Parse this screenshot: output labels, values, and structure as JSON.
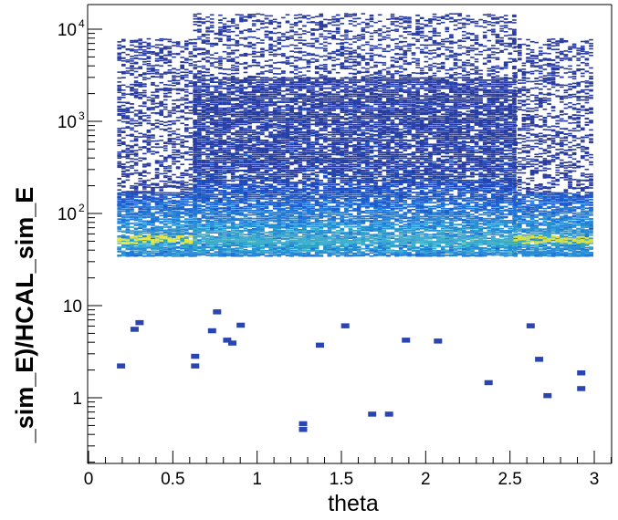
{
  "chart_data": {
    "type": "heatmap",
    "title": "",
    "xlabel": "theta",
    "ylabel": "_sim_E)/HCAL_sim_E",
    "xlim": [
      0,
      3.1
    ],
    "ylim": [
      0.3,
      16000
    ],
    "y_scale": "log",
    "grid": false,
    "legend": "none",
    "x_ticks": [
      {
        "value": 0,
        "label": "0"
      },
      {
        "value": 0.5,
        "label": "0.5"
      },
      {
        "value": 1,
        "label": "1"
      },
      {
        "value": 1.5,
        "label": "1.5"
      },
      {
        "value": 2,
        "label": "2"
      },
      {
        "value": 2.5,
        "label": "2.5"
      },
      {
        "value": 3,
        "label": "3"
      }
    ],
    "y_ticks": [
      {
        "value": 1,
        "label": "1"
      },
      {
        "value": 10,
        "label": "10"
      },
      {
        "value": 100,
        "label": "10",
        "exp": "2"
      },
      {
        "value": 1000,
        "label": "10",
        "exp": "3"
      },
      {
        "value": 10000,
        "label": "10",
        "exp": "4"
      }
    ],
    "regions": [
      {
        "theta": [
          0.17,
          0.62
        ],
        "peak": 52,
        "min": 35,
        "dense_max": 170,
        "sparse_max": 8000,
        "peak_color": "#e8e640"
      },
      {
        "theta": [
          0.62,
          2.52
        ],
        "peak": 52,
        "min": 35,
        "dense_max": 3000,
        "sparse_max": 15000,
        "peak_color": "#3fb0d0"
      },
      {
        "theta": [
          2.52,
          2.97
        ],
        "peak": 52,
        "min": 35,
        "dense_max": 170,
        "sparse_max": 8000,
        "peak_color": "#d8e048"
      }
    ],
    "outliers": [
      {
        "theta": 0.19,
        "y": 2.2
      },
      {
        "theta": 0.27,
        "y": 5.5
      },
      {
        "theta": 0.3,
        "y": 6.5
      },
      {
        "theta": 0.63,
        "y": 2.2
      },
      {
        "theta": 0.63,
        "y": 2.8
      },
      {
        "theta": 0.73,
        "y": 5.3
      },
      {
        "theta": 0.76,
        "y": 8.5
      },
      {
        "theta": 0.82,
        "y": 4.2
      },
      {
        "theta": 0.85,
        "y": 3.9
      },
      {
        "theta": 0.9,
        "y": 6.1
      },
      {
        "theta": 1.27,
        "y": 0.45
      },
      {
        "theta": 1.27,
        "y": 0.52
      },
      {
        "theta": 1.37,
        "y": 3.7
      },
      {
        "theta": 1.52,
        "y": 6.0
      },
      {
        "theta": 1.68,
        "y": 0.66
      },
      {
        "theta": 1.78,
        "y": 0.66
      },
      {
        "theta": 1.88,
        "y": 4.2
      },
      {
        "theta": 2.07,
        "y": 4.1
      },
      {
        "theta": 2.37,
        "y": 1.45
      },
      {
        "theta": 2.67,
        "y": 2.6
      },
      {
        "theta": 2.72,
        "y": 1.05
      },
      {
        "theta": 2.92,
        "y": 1.25
      },
      {
        "theta": 2.92,
        "y": 1.85
      },
      {
        "theta": 2.62,
        "y": 6.0
      }
    ]
  }
}
